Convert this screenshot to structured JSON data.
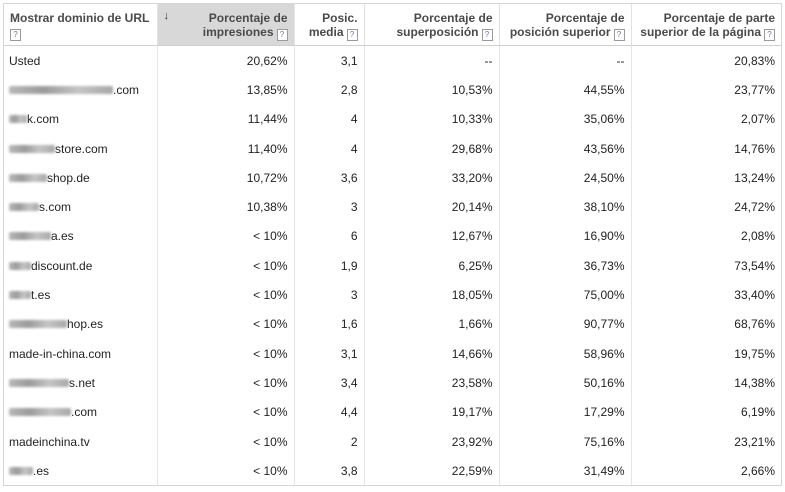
{
  "headers": {
    "domain": "Mostrar dominio de URL",
    "impressions": "Porcentaje de impresiones",
    "avg_position": "Posic. media",
    "overlap": "Porcentaje de superposición",
    "top_position": "Porcentaje de posición superior",
    "page_top": "Porcentaje de parte superior de la página",
    "help_glyph": "?",
    "sort_arrow": "↓"
  },
  "rows": [
    {
      "blur": 0,
      "domain": "Usted",
      "impressions": "20,62%",
      "avg_position": "3,1",
      "overlap": "--",
      "top_position": "--",
      "page_top": "20,83%"
    },
    {
      "blur": 104,
      "domain": ".com",
      "impressions": "13,85%",
      "avg_position": "2,8",
      "overlap": "10,53%",
      "top_position": "44,55%",
      "page_top": "23,77%"
    },
    {
      "blur": 18,
      "domain": "k.com",
      "impressions": "11,44%",
      "avg_position": "4",
      "overlap": "10,33%",
      "top_position": "35,06%",
      "page_top": "2,07%"
    },
    {
      "blur": 46,
      "domain": "store.com",
      "impressions": "11,40%",
      "avg_position": "4",
      "overlap": "29,68%",
      "top_position": "43,56%",
      "page_top": "14,76%"
    },
    {
      "blur": 38,
      "domain": "shop.de",
      "impressions": "10,72%",
      "avg_position": "3,6",
      "overlap": "33,20%",
      "top_position": "24,50%",
      "page_top": "13,24%"
    },
    {
      "blur": 30,
      "domain": "s.com",
      "impressions": "10,38%",
      "avg_position": "3",
      "overlap": "20,14%",
      "top_position": "38,10%",
      "page_top": "24,72%"
    },
    {
      "blur": 42,
      "domain": "a.es",
      "impressions": "< 10%",
      "avg_position": "6",
      "overlap": "12,67%",
      "top_position": "16,90%",
      "page_top": "2,08%"
    },
    {
      "blur": 22,
      "domain": "discount.de",
      "impressions": "< 10%",
      "avg_position": "1,9",
      "overlap": "6,25%",
      "top_position": "36,73%",
      "page_top": "73,54%"
    },
    {
      "blur": 22,
      "domain": "t.es",
      "impressions": "< 10%",
      "avg_position": "3",
      "overlap": "18,05%",
      "top_position": "75,00%",
      "page_top": "33,40%"
    },
    {
      "blur": 58,
      "domain": "hop.es",
      "impressions": "< 10%",
      "avg_position": "1,6",
      "overlap": "1,66%",
      "top_position": "90,77%",
      "page_top": "68,76%"
    },
    {
      "blur": 0,
      "domain": "made-in-china.com",
      "impressions": "< 10%",
      "avg_position": "3,1",
      "overlap": "14,66%",
      "top_position": "58,96%",
      "page_top": "19,75%"
    },
    {
      "blur": 60,
      "domain": "s.net",
      "impressions": "< 10%",
      "avg_position": "3,4",
      "overlap": "23,58%",
      "top_position": "50,16%",
      "page_top": "14,38%"
    },
    {
      "blur": 62,
      "domain": ".com",
      "impressions": "< 10%",
      "avg_position": "4,4",
      "overlap": "19,17%",
      "top_position": "17,29%",
      "page_top": "6,19%"
    },
    {
      "blur": 0,
      "domain": "madeinchina.tv",
      "impressions": "< 10%",
      "avg_position": "2",
      "overlap": "23,92%",
      "top_position": "75,16%",
      "page_top": "23,21%"
    },
    {
      "blur": 24,
      "domain": ".es",
      "impressions": "< 10%",
      "avg_position": "3,8",
      "overlap": "22,59%",
      "top_position": "31,49%",
      "page_top": "2,66%"
    }
  ]
}
